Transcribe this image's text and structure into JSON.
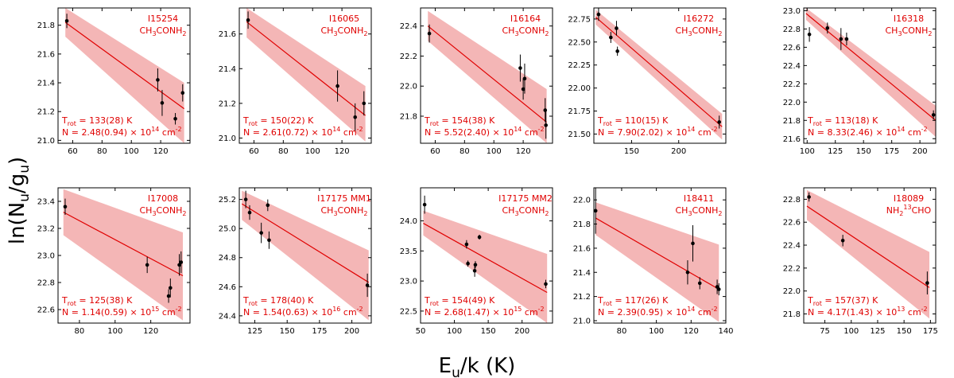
{
  "figure": {
    "ylabel": "ln(N",
    "ylabel_sub": "u",
    "ylabel_mid": "/g",
    "ylabel_sub2": "u",
    "ylabel_end": ")",
    "xlabel": "E",
    "xlabel_sub": "u",
    "xlabel_end": "/k (K)",
    "colors": {
      "fit": "#e00000",
      "band": "#f4b6b6",
      "points": "#000000",
      "text": "#e00000"
    }
  },
  "chart_data": [
    {
      "type": "scatter",
      "title": "I15254",
      "molecule": "CH3CONH2",
      "xlim": [
        50,
        140
      ],
      "ylim": [
        20.98,
        21.92
      ],
      "xticks": [
        60,
        80,
        100,
        120
      ],
      "yticks": [
        21.0,
        21.2,
        21.4,
        21.6,
        21.8
      ],
      "x": [
        56,
        118,
        121,
        130,
        135
      ],
      "y": [
        21.83,
        21.42,
        21.26,
        21.15,
        21.33
      ],
      "yerr": [
        0.05,
        0.08,
        0.09,
        0.04,
        0.06
      ],
      "fit": {
        "x0": 55,
        "x1": 136,
        "y0": 21.82,
        "y1": 21.22
      },
      "band": {
        "upper0": 21.92,
        "upper1": 21.4,
        "lower0": 21.72,
        "lower1": 20.98
      },
      "trot_value": "= 133(28) K",
      "n_value": "= 2.48(0.94)",
      "n_exp": "14"
    },
    {
      "type": "scatter",
      "title": "I16065",
      "molecule": "CH3CONH2",
      "xlim": [
        50,
        140
      ],
      "ylim": [
        20.97,
        21.75
      ],
      "xticks": [
        60,
        80,
        100,
        120
      ],
      "yticks": [
        21.0,
        21.2,
        21.4,
        21.6
      ],
      "x": [
        56,
        117,
        129,
        135
      ],
      "y": [
        21.68,
        21.3,
        21.12,
        21.2
      ],
      "yerr": [
        0.05,
        0.09,
        0.08,
        0.07
      ],
      "fit": {
        "x0": 55,
        "x1": 136,
        "y0": 21.67,
        "y1": 21.13
      },
      "band": {
        "upper0": 21.75,
        "upper1": 21.3,
        "lower0": 21.58,
        "lower1": 20.98
      },
      "trot_value": "= 150(22) K",
      "n_value": "= 2.61(0.72)",
      "n_exp": "14"
    },
    {
      "type": "scatter",
      "title": "I16164",
      "molecule": "CH3CONH2",
      "xlim": [
        50,
        140
      ],
      "ylim": [
        21.62,
        22.52
      ],
      "xticks": [
        60,
        80,
        100,
        120
      ],
      "yticks": [
        21.8,
        22.0,
        22.2,
        22.4
      ],
      "x": [
        56,
        118,
        120,
        121,
        135,
        135.5
      ],
      "y": [
        22.35,
        22.12,
        21.98,
        22.05,
        21.84,
        21.74
      ],
      "yerr": [
        0.06,
        0.09,
        0.07,
        0.1,
        0.08,
        0.09
      ],
      "fit": {
        "x0": 55,
        "x1": 136,
        "y0": 22.4,
        "y1": 21.76
      },
      "band": {
        "upper0": 22.5,
        "upper1": 21.98,
        "lower0": 22.3,
        "lower1": 21.62
      },
      "trot_value": "= 154(38) K",
      "n_value": "= 5.52(2.40)",
      "n_exp": "14"
    },
    {
      "type": "scatter",
      "title": "I16272",
      "molecule": "CH3CONH2",
      "xlim": [
        110,
        250
      ],
      "ylim": [
        21.4,
        22.87
      ],
      "xticks": [
        150,
        200
      ],
      "yticks": [
        21.5,
        21.75,
        22.0,
        22.25,
        22.5,
        22.75
      ],
      "yticklabels": [
        "21.50",
        "21.75",
        "22.00",
        "22.25",
        "22.50",
        "22.75"
      ],
      "x": [
        115,
        128,
        134,
        135,
        243
      ],
      "y": [
        22.8,
        22.55,
        22.65,
        22.4,
        21.63
      ],
      "yerr": [
        0.07,
        0.06,
        0.08,
        0.05,
        0.07
      ],
      "fit": {
        "x0": 112,
        "x1": 246,
        "y0": 22.77,
        "y1": 21.58
      },
      "band": {
        "upper0": 22.85,
        "upper1": 21.72,
        "lower0": 22.69,
        "lower1": 21.44
      },
      "trot_value": "= 110(15) K",
      "n_value": "= 7.90(2.02)",
      "n_exp": "14"
    },
    {
      "type": "scatter",
      "title": "I16318",
      "molecule": "CH3CONH2",
      "xlim": [
        97,
        214
      ],
      "ylim": [
        21.55,
        23.03
      ],
      "xticks": [
        100,
        125,
        150,
        175,
        200
      ],
      "yticks": [
        21.6,
        21.8,
        22.0,
        22.2,
        22.4,
        22.6,
        22.8,
        23.0
      ],
      "x": [
        102,
        118,
        130,
        135,
        212
      ],
      "y": [
        22.74,
        22.81,
        22.69,
        22.69,
        21.86
      ],
      "yerr": [
        0.08,
        0.06,
        0.12,
        0.07,
        0.05
      ],
      "fit": {
        "x0": 99,
        "x1": 214,
        "y0": 22.97,
        "y1": 21.8
      },
      "band": {
        "upper0": 23.03,
        "upper1": 21.96,
        "lower0": 22.9,
        "lower1": 21.62
      },
      "trot_value": "= 113(18) K",
      "n_value": "= 8.33(2.46)",
      "n_exp": "14"
    },
    {
      "type": "scatter",
      "title": "I17008",
      "molecule": "CH3CONH2",
      "xlim": [
        68,
        142
      ],
      "ylim": [
        22.5,
        23.5
      ],
      "xticks": [
        80,
        100,
        120
      ],
      "yticks": [
        22.6,
        22.8,
        23.0,
        23.2,
        23.4
      ],
      "x": [
        72,
        118,
        130,
        131,
        136,
        137
      ],
      "y": [
        23.36,
        22.93,
        22.7,
        22.76,
        22.93,
        22.95
      ],
      "yerr": [
        0.06,
        0.06,
        0.05,
        0.07,
        0.08,
        0.08
      ],
      "fit": {
        "x0": 71,
        "x1": 138,
        "y0": 23.32,
        "y1": 22.85
      },
      "band": {
        "upper0": 23.49,
        "upper1": 23.17,
        "lower0": 23.15,
        "lower1": 22.52
      },
      "trot_value": "= 125(38) K",
      "n_value": "= 1.14(0.59)",
      "n_exp": "15"
    },
    {
      "type": "scatter",
      "title": "I17175 MM1",
      "molecule": "CH3CONH2",
      "xlim": [
        113,
        215
      ],
      "ylim": [
        24.35,
        25.28
      ],
      "xticks": [
        125,
        150,
        175,
        200
      ],
      "yticks": [
        24.4,
        24.6,
        24.8,
        25.0,
        25.2
      ],
      "x": [
        118,
        121,
        130,
        135,
        136,
        212
      ],
      "y": [
        25.2,
        25.11,
        24.97,
        25.16,
        24.92,
        24.61
      ],
      "yerr": [
        0.06,
        0.05,
        0.07,
        0.04,
        0.06,
        0.08
      ],
      "fit": {
        "x0": 115,
        "x1": 213,
        "y0": 25.17,
        "y1": 24.63
      },
      "band": {
        "upper0": 25.26,
        "upper1": 24.85,
        "lower0": 25.06,
        "lower1": 24.37
      },
      "trot_value": "= 178(40) K",
      "n_value": "= 1.54(0.63)",
      "n_exp": "16"
    },
    {
      "type": "scatter",
      "title": "I17175 MM2",
      "molecule": "CH3CONH2",
      "xlim": [
        50,
        245
      ],
      "ylim": [
        22.3,
        24.55
      ],
      "xticks": [
        50,
        100,
        150,
        200
      ],
      "yticks": [
        22.5,
        23.0,
        23.5,
        24.0
      ],
      "x": [
        56,
        118,
        120,
        130,
        131,
        137,
        235
      ],
      "y": [
        24.27,
        23.61,
        23.29,
        23.17,
        23.27,
        23.73,
        22.95
      ],
      "yerr": [
        0.15,
        0.07,
        0.05,
        0.1,
        0.06,
        0.04,
        0.07
      ],
      "fit": {
        "x0": 54,
        "x1": 237,
        "y0": 23.96,
        "y1": 22.81
      },
      "band": {
        "upper0": 24.17,
        "upper1": 23.45,
        "lower0": 23.76,
        "lower1": 22.3
      },
      "trot_value": "= 154(49) K",
      "n_value": "= 2.68(1.47)",
      "n_exp": "15"
    },
    {
      "type": "scatter",
      "title": "I18411",
      "molecule": "CH3CONH2",
      "xlim": [
        64,
        140
      ],
      "ylim": [
        20.98,
        22.1
      ],
      "xticks": [
        80,
        100,
        120,
        140
      ],
      "yticks": [
        21.0,
        21.2,
        21.4,
        21.6,
        21.8,
        22.0
      ],
      "x": [
        65,
        118,
        121,
        125,
        135,
        136
      ],
      "y": [
        21.91,
        21.4,
        21.64,
        21.31,
        21.28,
        21.26
      ],
      "yerr": [
        0.19,
        0.1,
        0.15,
        0.05,
        0.06,
        0.05
      ],
      "fit": {
        "x0": 65,
        "x1": 136,
        "y0": 21.85,
        "y1": 21.26
      },
      "band": {
        "upper0": 21.98,
        "upper1": 21.63,
        "lower0": 21.71,
        "lower1": 20.99
      },
      "trot_value": "= 117(26) K",
      "n_value": "= 2.39(0.95)",
      "n_exp": "14"
    },
    {
      "type": "scatter",
      "title": "I18089",
      "molecule": "NH2 13CHO",
      "xlim": [
        55,
        180
      ],
      "ylim": [
        21.72,
        22.9
      ],
      "xticks": [
        75,
        100,
        125,
        150,
        175
      ],
      "yticks": [
        21.8,
        22.0,
        22.2,
        22.4,
        22.6,
        22.8
      ],
      "x": [
        60,
        92,
        172
      ],
      "y": [
        22.82,
        22.44,
        22.07
      ],
      "yerr": [
        0.04,
        0.05,
        0.1
      ],
      "fit": {
        "x0": 58,
        "x1": 174,
        "y0": 22.74,
        "y1": 22.03
      },
      "band": {
        "upper0": 22.88,
        "upper1": 22.34,
        "lower0": 22.62,
        "lower1": 21.76
      },
      "trot_value": "= 157(37) K",
      "n_value": "= 4.17(1.43)",
      "n_exp": "13"
    }
  ]
}
